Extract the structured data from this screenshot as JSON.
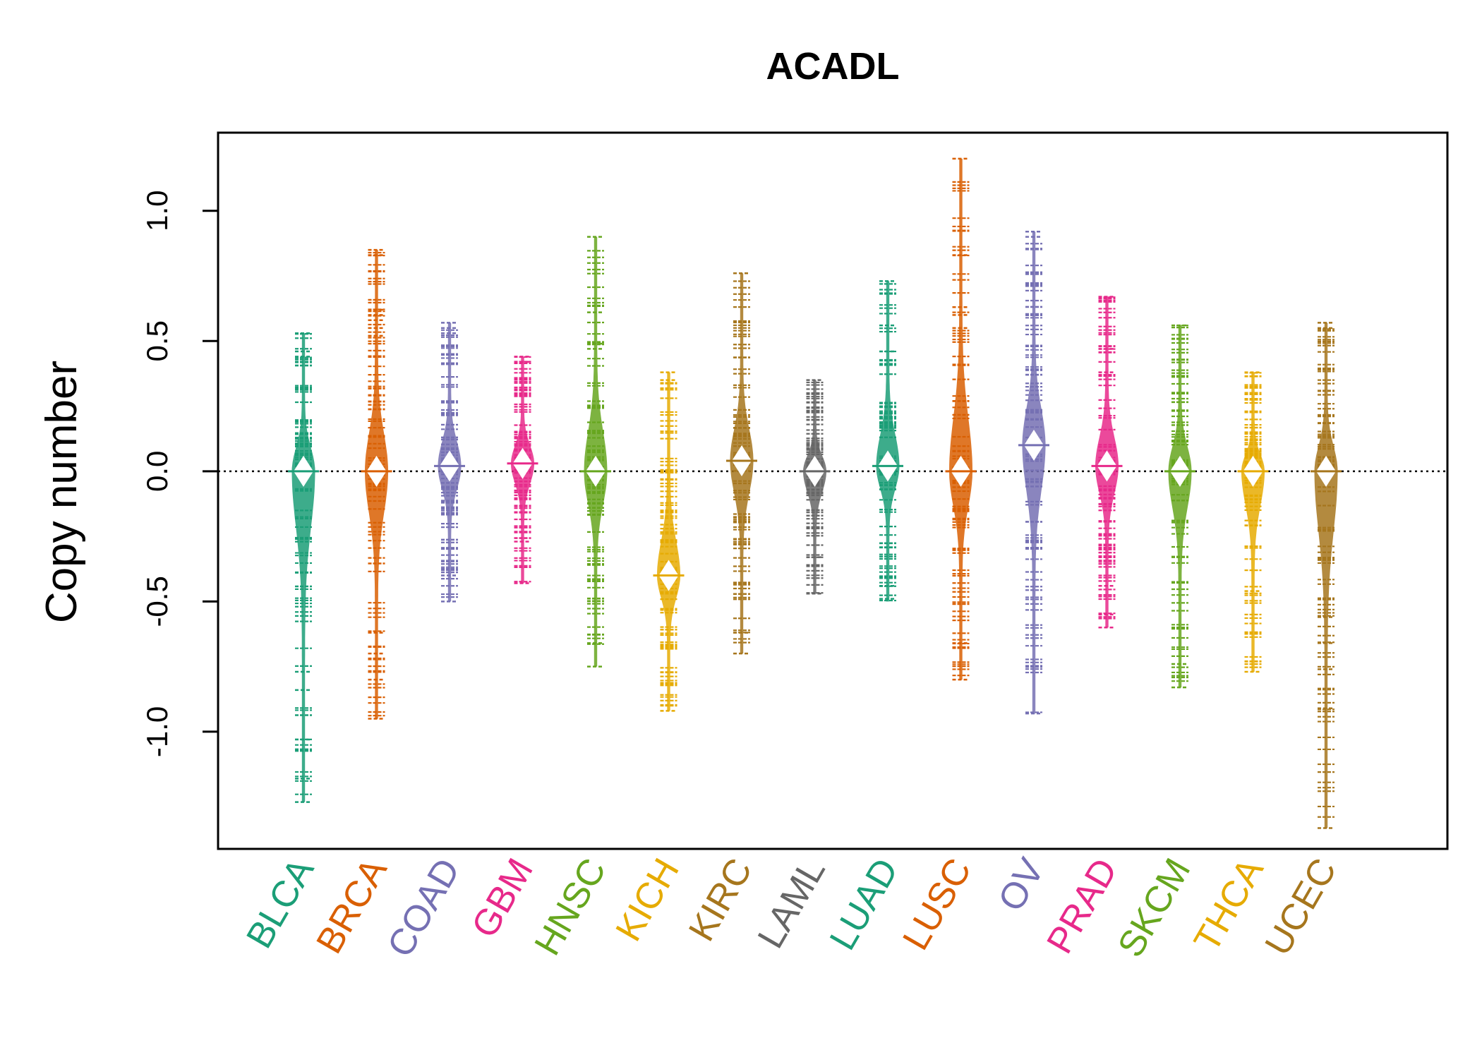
{
  "chart_data": {
    "type": "beanplot",
    "title": "ACADL",
    "ylabel": "Copy number",
    "xlabel": "",
    "ylim": [
      -1.45,
      1.3
    ],
    "yticks": [
      -1.0,
      -0.5,
      0.0,
      0.5,
      1.0
    ],
    "ytick_labels": [
      "-1.0",
      "-0.5",
      "0.0",
      "0.5",
      "1.0"
    ],
    "reference_line": 0.0,
    "grid": false,
    "categories": [
      "BLCA",
      "BRCA",
      "COAD",
      "GBM",
      "HNSC",
      "KICH",
      "KIRC",
      "LAML",
      "LUAD",
      "LUSC",
      "OV",
      "PRAD",
      "SKCM",
      "THCA",
      "UCEC"
    ],
    "series": [
      {
        "category": "BLCA",
        "color": "#1b9e77",
        "min": -1.27,
        "max": 0.53,
        "median": 0.0,
        "outliers": [
          0.53,
          0.46,
          0.44,
          -0.77,
          -0.84,
          -1.03,
          -1.18,
          -1.27
        ]
      },
      {
        "category": "BRCA",
        "color": "#d95f02",
        "min": -0.95,
        "max": 0.85,
        "median": 0.0,
        "outliers": [
          0.85,
          0.83,
          0.62,
          0.6,
          0.58,
          0.55,
          0.52,
          -0.62,
          -0.7,
          -0.8,
          -0.95
        ]
      },
      {
        "category": "COAD",
        "color": "#7570b3",
        "min": -0.5,
        "max": 0.57,
        "median": 0.02,
        "outliers": [
          0.57,
          0.55,
          0.53,
          -0.4,
          -0.5
        ]
      },
      {
        "category": "GBM",
        "color": "#e7298a",
        "min": -0.43,
        "max": 0.44,
        "median": 0.03,
        "outliers": [
          0.44,
          0.42,
          -0.27,
          -0.43
        ]
      },
      {
        "category": "HNSC",
        "color": "#66a61e",
        "min": -0.75,
        "max": 0.9,
        "median": 0.0,
        "outliers": [
          0.9,
          0.61,
          0.49,
          0.47,
          -0.66,
          -0.75
        ]
      },
      {
        "category": "KICH",
        "color": "#e6ab02",
        "min": -0.92,
        "max": 0.38,
        "median": -0.4,
        "outliers": [
          0.38,
          0.35,
          -0.92
        ]
      },
      {
        "category": "KIRC",
        "color": "#a6761d",
        "min": -0.7,
        "max": 0.76,
        "median": 0.04,
        "outliers": [
          0.76,
          -0.62,
          -0.7
        ]
      },
      {
        "category": "LAML",
        "color": "#666666",
        "min": -0.47,
        "max": 0.35,
        "median": 0.0,
        "outliers": [
          0.35,
          -0.33,
          -0.47
        ]
      },
      {
        "category": "LUAD",
        "color": "#1b9e77",
        "min": -0.5,
        "max": 0.73,
        "median": 0.02,
        "outliers": [
          0.73,
          0.56,
          0.46,
          -0.44,
          -0.49
        ]
      },
      {
        "category": "LUSC",
        "color": "#d95f02",
        "min": -0.8,
        "max": 1.2,
        "median": 0.0,
        "outliers": [
          1.2,
          0.83,
          0.63,
          0.6,
          0.55,
          -0.66,
          -0.8
        ]
      },
      {
        "category": "OV",
        "color": "#7570b3",
        "min": -0.93,
        "max": 0.92,
        "median": 0.1,
        "outliers": [
          0.92,
          0.9,
          -0.93
        ]
      },
      {
        "category": "PRAD",
        "color": "#e7298a",
        "min": -0.6,
        "max": 0.67,
        "median": 0.02,
        "outliers": [
          0.67,
          0.47,
          0.38,
          -0.44,
          -0.55,
          -0.6
        ]
      },
      {
        "category": "SKCM",
        "color": "#66a61e",
        "min": -0.83,
        "max": 0.56,
        "median": 0.0,
        "outliers": [
          0.56,
          -0.74,
          -0.83
        ]
      },
      {
        "category": "THCA",
        "color": "#e6ab02",
        "min": -0.77,
        "max": 0.38,
        "median": 0.0,
        "outliers": [
          0.38,
          -0.46,
          -0.77
        ]
      },
      {
        "category": "UCEC",
        "color": "#a6761d",
        "min": -1.37,
        "max": 0.57,
        "median": 0.0,
        "outliers": [
          0.57,
          0.55,
          -0.56,
          -0.66,
          -0.76,
          -0.91,
          -1.37
        ]
      }
    ]
  }
}
